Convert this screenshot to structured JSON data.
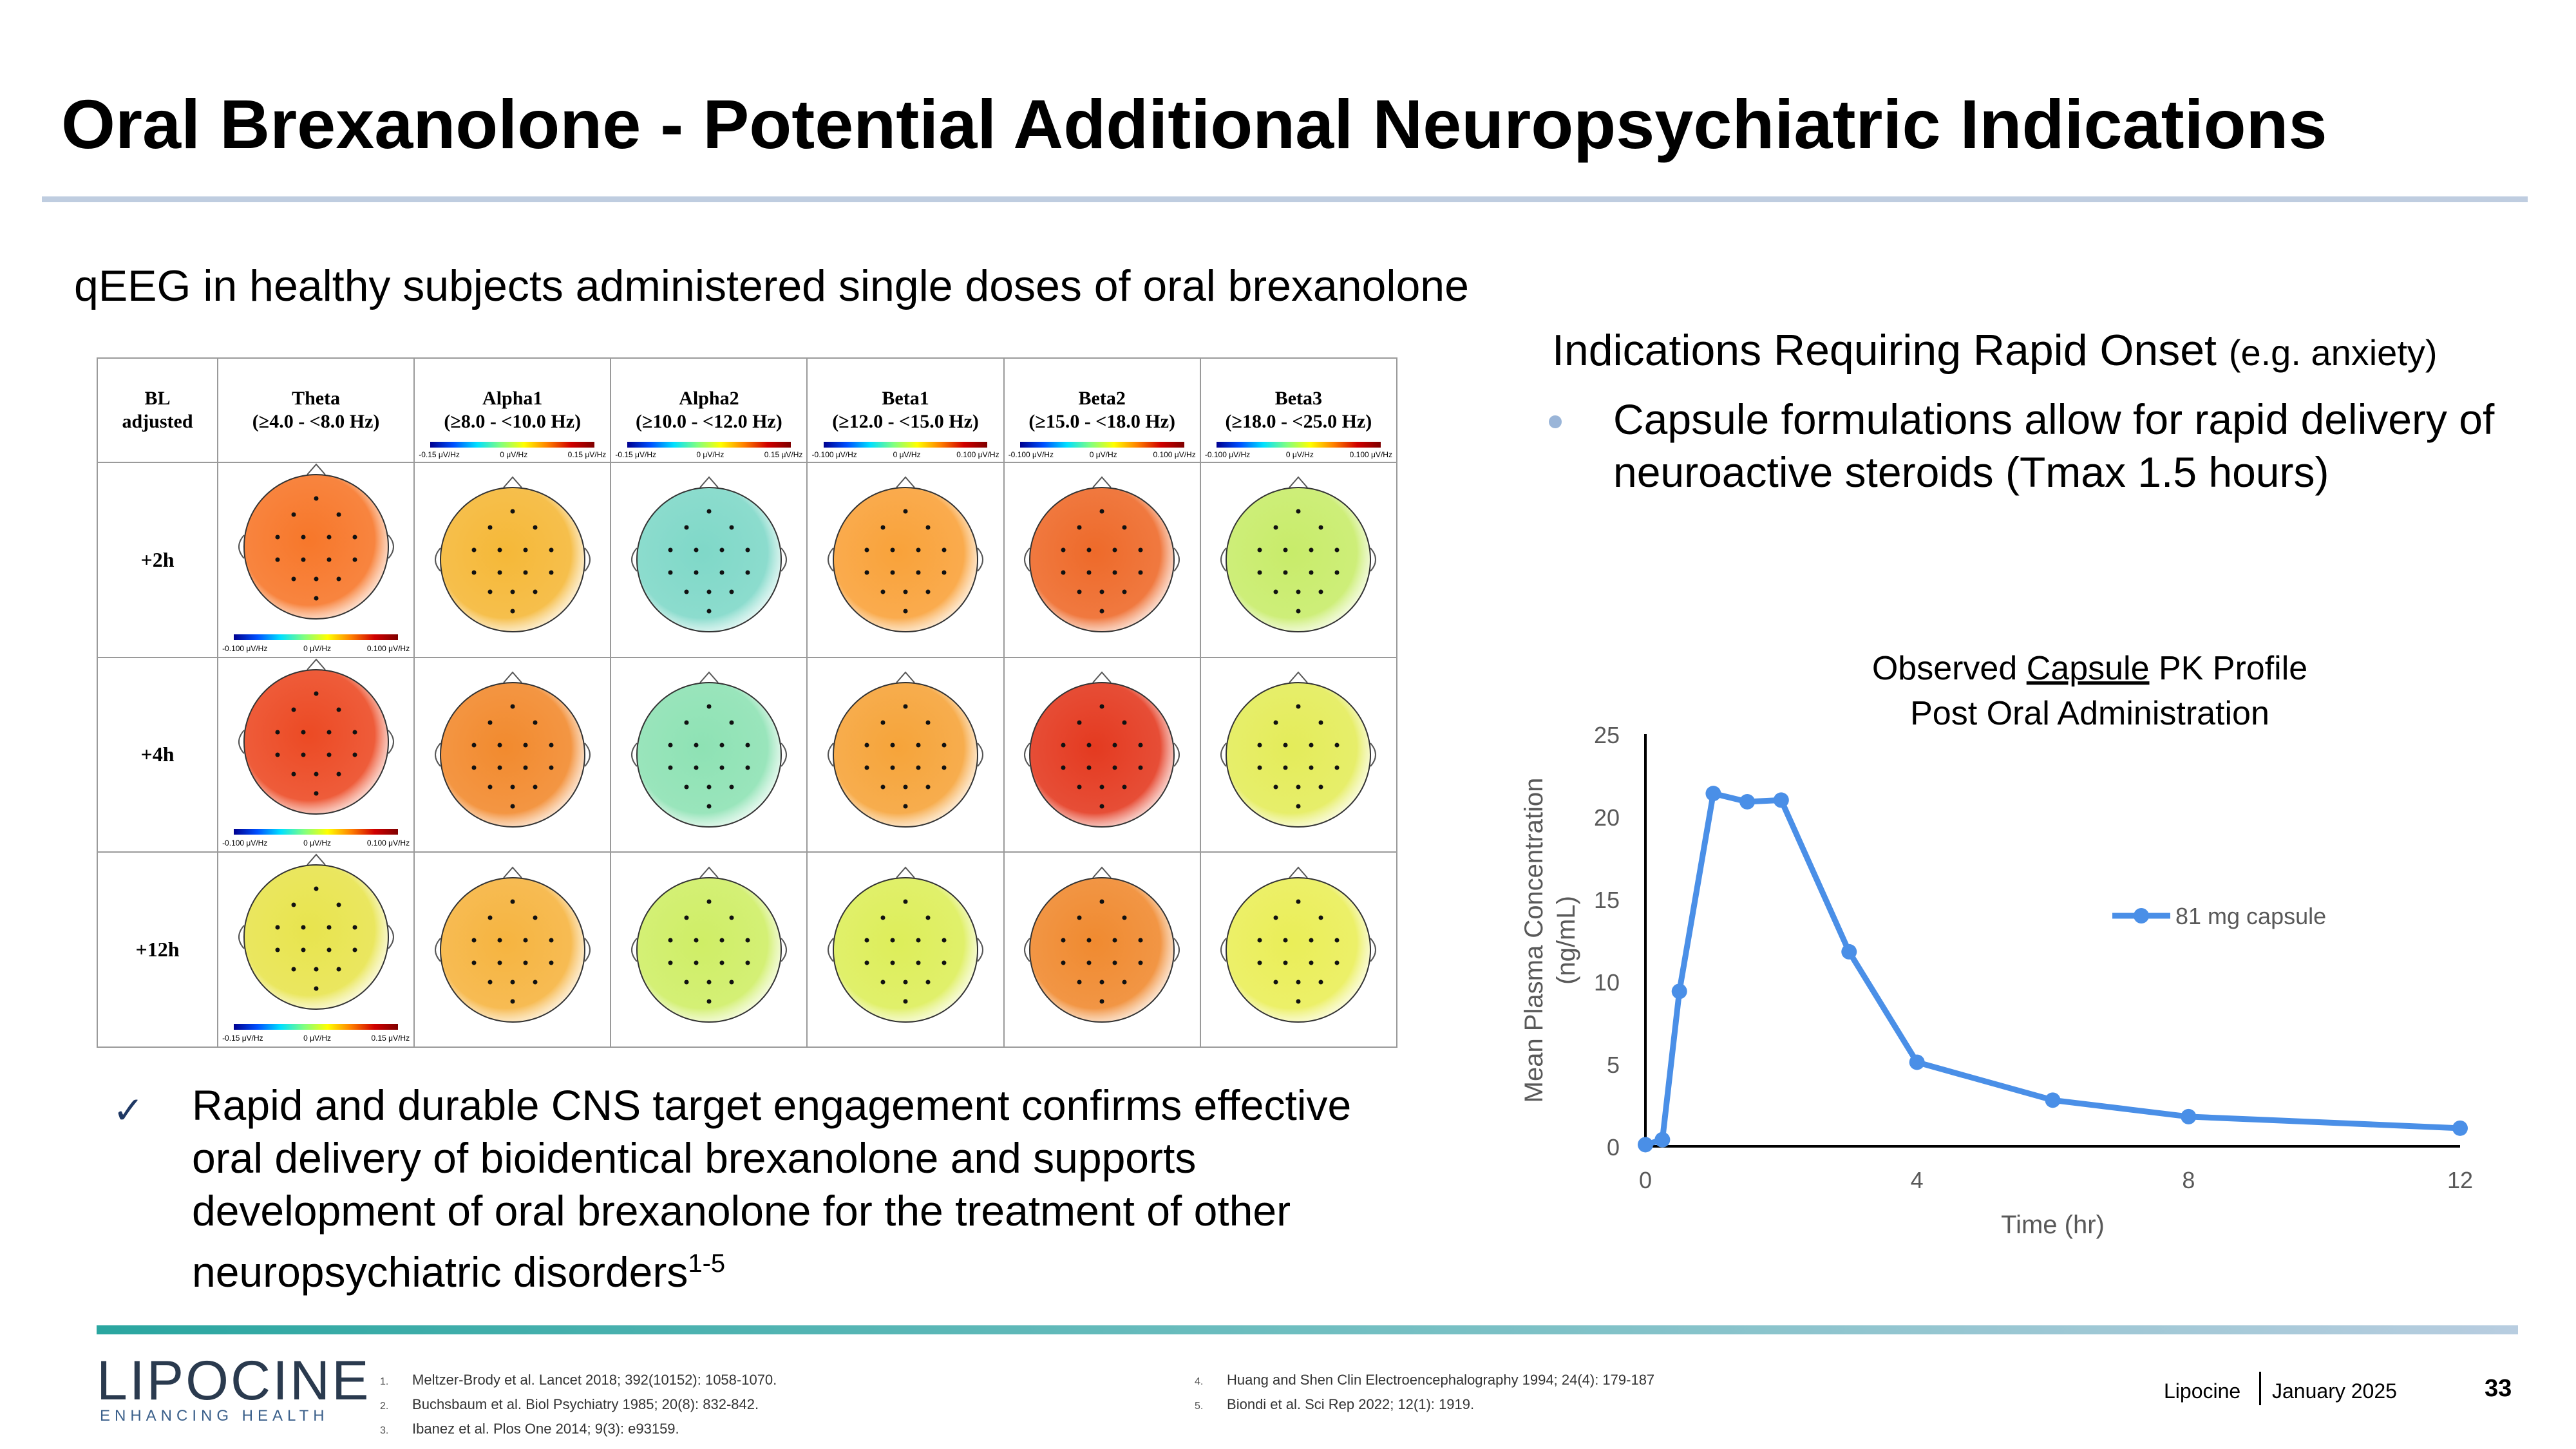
{
  "slide": {
    "title": "Oral Brexanolone - Potential Additional Neuropsychiatric Indications",
    "subtitle": "qEEG in healthy subjects administered single doses of oral brexanolone",
    "indications_heading": "Indications Requiring Rapid Onset",
    "indications_heading_small": "(e.g. anxiety)",
    "indications_bullet": "Capsule formulations allow for rapid delivery of neuroactive steroids (Tmax 1.5 hours)",
    "conclusion_text": "Rapid and durable CNS target engagement confirms effective oral delivery of bioidentical brexanolone and supports development of oral brexanolone for the treatment of other neuropsychiatric disorders",
    "conclusion_sup": "1-5",
    "check_icon": "✓"
  },
  "qeeg_table": {
    "corner_label_1": "BL",
    "corner_label_2": "adjusted",
    "columns": [
      {
        "name": "Theta",
        "range": "(≥4.0 - <8.0 Hz)",
        "scale": []
      },
      {
        "name": "Alpha1",
        "range": "(≥8.0 - <10.0 Hz)",
        "scale": [
          "-0.15 μV/Hz",
          "0 μV/Hz",
          "0.15 μV/Hz"
        ]
      },
      {
        "name": "Alpha2",
        "range": "(≥10.0 - <12.0 Hz)",
        "scale": [
          "-0.15 μV/Hz",
          "0 μV/Hz",
          "0.15 μV/Hz"
        ]
      },
      {
        "name": "Beta1",
        "range": "(≥12.0 - <15.0 Hz)",
        "scale": [
          "-0.100 μV/Hz",
          "0 μV/Hz",
          "0.100 μV/Hz"
        ]
      },
      {
        "name": "Beta2",
        "range": "(≥15.0 - <18.0 Hz)",
        "scale": [
          "-0.100 μV/Hz",
          "0 μV/Hz",
          "0.100 μV/Hz"
        ]
      },
      {
        "name": "Beta3",
        "range": "(≥18.0 - <25.0 Hz)",
        "scale": [
          "-0.100 μV/Hz",
          "0 μV/Hz",
          "0.100 μV/Hz"
        ]
      }
    ],
    "rows": [
      {
        "label": "+2h",
        "theta_scale": [
          "-0.100 μV/Hz",
          "0 μV/Hz",
          "0.100 μV/Hz"
        ],
        "maps": [
          "#f7772a",
          "#f5b838",
          "#7fd8c8",
          "#f9a23a",
          "#ee6a2a",
          "#c8ec6a"
        ]
      },
      {
        "label": "+4h",
        "theta_scale": [
          "-0.100 μV/Hz",
          "0 μV/Hz",
          "0.100 μV/Hz"
        ],
        "maps": [
          "#ec4a24",
          "#f28a2e",
          "#8ee2b4",
          "#f6a43a",
          "#e43a20",
          "#e4ec5a"
        ]
      },
      {
        "label": "+12h",
        "theta_scale": [
          "-0.15 μV/Hz",
          "0 μV/Hz",
          "0.15 μV/Hz"
        ],
        "maps": [
          "#e8e44e",
          "#f6b440",
          "#cfee66",
          "#ddee5a",
          "#f08a30",
          "#eaee58"
        ]
      }
    ]
  },
  "chart_data": {
    "type": "line",
    "title_line1_pre": "Observed ",
    "title_line1_underlined": "Capsule",
    "title_line1_post": " PK Profile",
    "title_line2": "Post Oral Administration",
    "xlabel": "Time (hr)",
    "ylabel_line1": "Mean Plasma Concentration",
    "ylabel_line2": "(ng/mL)",
    "xlim": [
      0,
      12
    ],
    "ylim": [
      0,
      25
    ],
    "x_ticks": [
      0,
      4,
      8,
      12
    ],
    "y_ticks": [
      0,
      5,
      10,
      15,
      20,
      25
    ],
    "series": [
      {
        "name": "81 mg capsule",
        "color": "#4a8fe7",
        "x": [
          0,
          0.25,
          0.5,
          1,
          1.5,
          2,
          3,
          4,
          6,
          8,
          12
        ],
        "y": [
          0.1,
          0.4,
          9.4,
          21.4,
          20.9,
          21.0,
          11.8,
          5.1,
          2.8,
          1.8,
          1.1
        ]
      }
    ]
  },
  "footer": {
    "logo_text": "LIPOCINE",
    "logo_tagline": "ENHANCING HEALTH",
    "references": [
      {
        "num": "1.",
        "text": "Meltzer-Brody et al. Lancet 2018; 392(10152): 1058-1070."
      },
      {
        "num": "2.",
        "text": "Buchsbaum et al. Biol Psychiatry 1985; 20(8): 832-842."
      },
      {
        "num": "3.",
        "text": "Ibanez et al. Plos One 2014; 9(3): e93159."
      },
      {
        "num": "4.",
        "text": "Huang and Shen Clin Electroencephalography 1994; 24(4): 179-187"
      },
      {
        "num": "5.",
        "text": "Biondi et al. Sci Rep 2022; 12(1): 1919."
      }
    ],
    "company": "Lipocine",
    "date": "January 2025",
    "page_number": "33"
  }
}
